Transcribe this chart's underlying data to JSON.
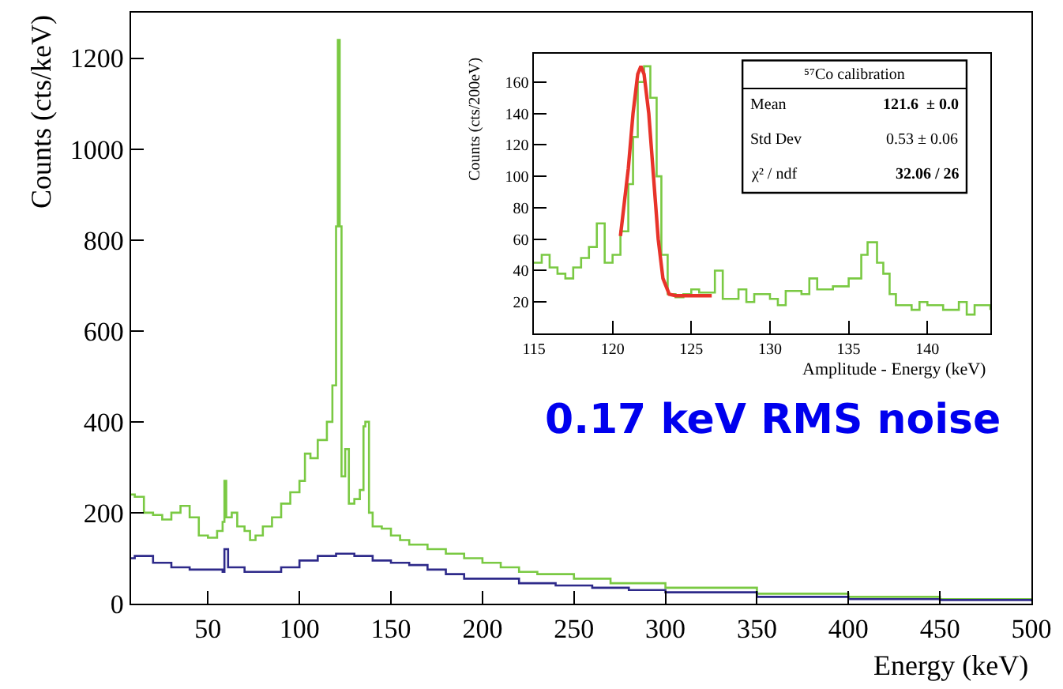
{
  "chart_data": [
    {
      "type": "step",
      "xlabel": "Energy (keV)",
      "ylabel": "Counts (cts/keV)",
      "xlim": [
        8,
        500
      ],
      "ylim": [
        0,
        1300
      ],
      "xticks": [
        50,
        100,
        150,
        200,
        250,
        300,
        350,
        400,
        450,
        500
      ],
      "yticks": [
        0,
        200,
        400,
        600,
        800,
        1000,
        1200
      ],
      "grid": false,
      "annotations": [
        "0.17 keV RMS noise"
      ],
      "series": [
        {
          "color": "#7ac943",
          "x": [
            8,
            10,
            15,
            20,
            25,
            30,
            35,
            40,
            45,
            50,
            55,
            58,
            59,
            60,
            63,
            66,
            70,
            73,
            76,
            80,
            85,
            90,
            95,
            100,
            103,
            106,
            110,
            115,
            118,
            120,
            121,
            122,
            123,
            125,
            127,
            130,
            133,
            135,
            136,
            138,
            140,
            145,
            150,
            155,
            160,
            170,
            180,
            190,
            200,
            210,
            220,
            230,
            250,
            270,
            300,
            350,
            400,
            450,
            500
          ],
          "values": [
            240,
            235,
            200,
            195,
            185,
            200,
            215,
            190,
            150,
            145,
            160,
            180,
            270,
            190,
            200,
            170,
            160,
            140,
            150,
            170,
            190,
            220,
            245,
            270,
            330,
            320,
            360,
            400,
            480,
            830,
            1240,
            830,
            280,
            340,
            220,
            230,
            250,
            390,
            400,
            200,
            170,
            165,
            150,
            140,
            130,
            120,
            110,
            100,
            90,
            80,
            70,
            65,
            55,
            45,
            35,
            22,
            15,
            10,
            8
          ]
        },
        {
          "color": "#2e2a8a",
          "x": [
            8,
            10,
            20,
            30,
            40,
            50,
            58,
            59,
            61,
            70,
            80,
            90,
            100,
            110,
            120,
            130,
            140,
            150,
            160,
            170,
            180,
            190,
            200,
            220,
            240,
            260,
            280,
            300,
            350,
            400,
            450,
            500
          ],
          "values": [
            100,
            105,
            90,
            80,
            75,
            75,
            70,
            120,
            80,
            70,
            70,
            80,
            95,
            105,
            110,
            105,
            95,
            90,
            85,
            75,
            65,
            55,
            55,
            45,
            40,
            35,
            30,
            25,
            15,
            10,
            8,
            5
          ]
        }
      ]
    },
    {
      "type": "step",
      "xlabel": "Amplitude - Energy (keV)",
      "ylabel": "Counts (cts/200eV)",
      "xlim": [
        115,
        144
      ],
      "ylim": [
        0,
        178
      ],
      "xticks": [
        115,
        120,
        125,
        130,
        135,
        140
      ],
      "yticks": [
        20,
        40,
        60,
        80,
        100,
        120,
        140,
        160
      ],
      "grid": false,
      "annotations": [
        "⁵⁷Co calibration",
        "Mean",
        "121.6  ± 0.0",
        "Std Dev",
        "0.53 ± 0.06",
        "χ² / ndf",
        "32.06 / 26"
      ],
      "series": [
        {
          "color": "#7ac943",
          "x": [
            115,
            115.5,
            116,
            116.5,
            117,
            117.5,
            118,
            118.5,
            119,
            119.5,
            120,
            120.5,
            121,
            121.3,
            121.6,
            122,
            122.4,
            122.8,
            123.1,
            123.5,
            124,
            124.5,
            125,
            125.5,
            126,
            126.5,
            127,
            128,
            128.5,
            129,
            130,
            130.5,
            131,
            132,
            132.5,
            133,
            134,
            135,
            135.8,
            136.2,
            136.8,
            137.2,
            137.6,
            138,
            139,
            139.5,
            140,
            141,
            142,
            142.5,
            143,
            144
          ],
          "values": [
            45,
            50,
            42,
            38,
            35,
            42,
            48,
            55,
            70,
            45,
            50,
            65,
            95,
            125,
            160,
            170,
            150,
            100,
            50,
            25,
            23,
            25,
            28,
            26,
            26,
            40,
            22,
            28,
            20,
            25,
            22,
            18,
            27,
            25,
            35,
            28,
            30,
            35,
            50,
            58,
            45,
            38,
            25,
            18,
            15,
            20,
            18,
            15,
            20,
            12,
            18,
            15
          ]
        },
        {
          "type": "line",
          "color": "#e8332a",
          "x": [
            120.5,
            121,
            121.3,
            121.6,
            121.8,
            122,
            122.3,
            122.6,
            122.9,
            123.2,
            123.6,
            124,
            125,
            126.3
          ],
          "values": [
            62,
            105,
            140,
            165,
            170,
            165,
            140,
            100,
            60,
            35,
            25,
            24,
            24,
            24
          ]
        }
      ]
    }
  ]
}
